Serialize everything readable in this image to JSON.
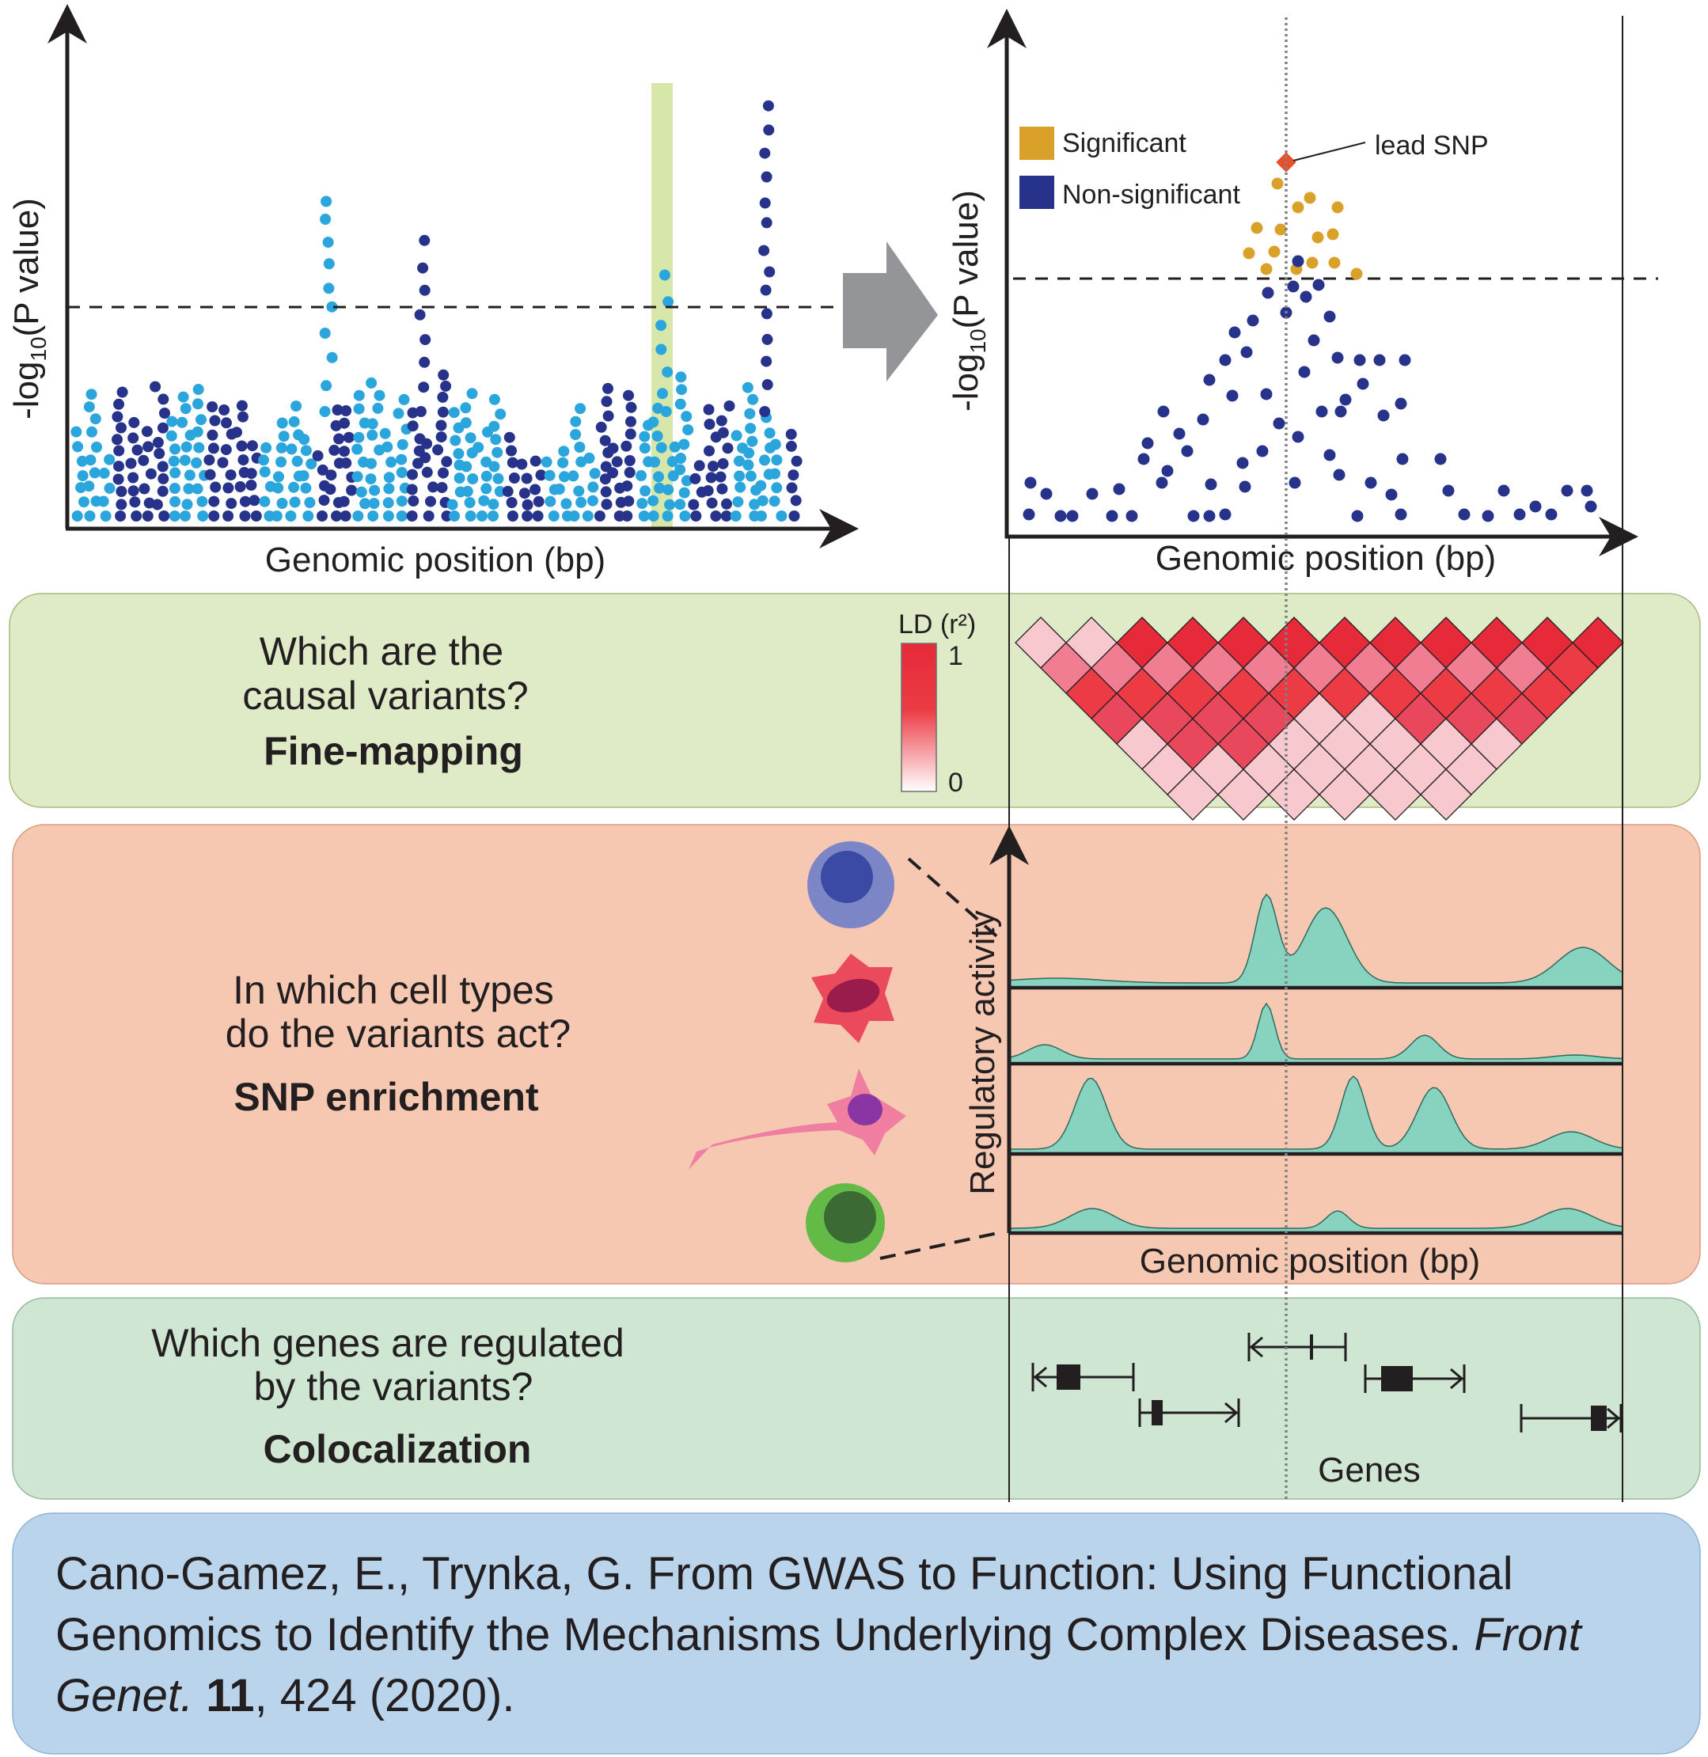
{
  "colors": {
    "light_blue": "#2aa6dd",
    "dark_blue": "#27338b",
    "significant": "#d9a12a",
    "lead_snp": "#e8502a",
    "highlight": "#cfe39a",
    "fine_mapping_panel": "#dfeac6",
    "enrichment_panel": "#f6c8b2",
    "coloc_panel": "#cfe6d3",
    "citation_panel": "#bad4ec",
    "track_fill": "#88d2c0",
    "ld_high": "#e62a39",
    "ld_low": "#f8c8cf"
  },
  "manhattan": {
    "ylabel_main": "-log",
    "ylabel_sub": "10",
    "ylabel_tail": "(P value)",
    "xlabel": "Genomic position (bp)"
  },
  "zoom": {
    "ylabel_main": "-log",
    "ylabel_sub": "10",
    "ylabel_tail": "(P value)",
    "xlabel": "Genomic position (bp)",
    "legend": [
      {
        "label": "Significant",
        "color": "#d9a12a"
      },
      {
        "label": "Non-significant",
        "color": "#27338b"
      }
    ],
    "lead_snp_label": "lead SNP"
  },
  "fine_mapping": {
    "question_line1": "Which are the",
    "question_line2": "causal variants?",
    "method": "Fine-mapping",
    "ld_title": "LD (r²)",
    "ld_max": "1",
    "ld_min": "0"
  },
  "enrichment": {
    "question_line1": "In which cell types",
    "question_line2": "do the variants act?",
    "method": "SNP enrichment",
    "ylabel": "Regulatory activity",
    "xlabel": "Genomic position (bp)",
    "cell_types": [
      "blue-cell",
      "red-cell",
      "pink-neuron",
      "green-cell"
    ]
  },
  "colocalization": {
    "question_line1": "Which genes are regulated",
    "question_line2": "by the variants?",
    "method": "Colocalization",
    "genes_label": "Genes"
  },
  "citation": {
    "authors_title": "Cano-Gamez, E., Trynka, G. From GWAS to Function: Using Functional Genomics to Identify the Mechanisms Underlying Complex Diseases.",
    "journal": "Front Genet",
    "dot": ".",
    "volume": "11",
    "pages_year": ", 424 (2020)."
  }
}
